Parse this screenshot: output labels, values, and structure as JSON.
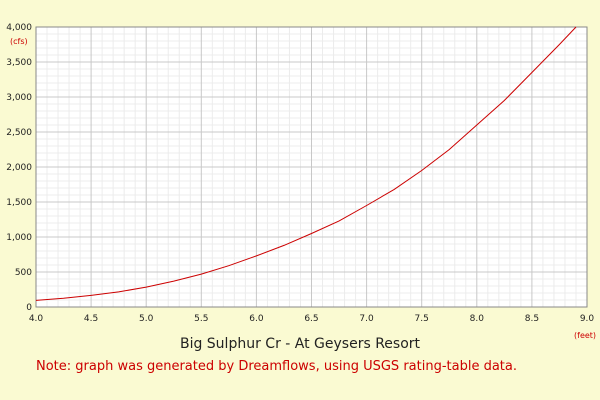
{
  "chart_data": {
    "type": "line",
    "title": "Big Sulphur Cr - At Geysers Resort",
    "note": "Note: graph was generated by Dreamflows, using USGS rating-table data.",
    "x_unit": "(feet)",
    "y_unit": "(cfs)",
    "xlim": [
      4.0,
      9.0
    ],
    "ylim": [
      0,
      4000
    ],
    "x_ticks": [
      4.0,
      4.5,
      5.0,
      5.5,
      6.0,
      6.5,
      7.0,
      7.5,
      8.0,
      8.5,
      9.0
    ],
    "x_tick_labels": [
      "4.0",
      "4.5",
      "5.0",
      "5.5",
      "6.0",
      "6.5",
      "7.0",
      "7.5",
      "8.0",
      "8.5",
      "9.0"
    ],
    "y_ticks": [
      0,
      500,
      1000,
      1500,
      2000,
      2500,
      3000,
      3500,
      4000
    ],
    "y_tick_labels": [
      "0",
      "500",
      "1,000",
      "1,500",
      "2,000",
      "2,500",
      "3,000",
      "3,500",
      "4,000"
    ],
    "grid": true,
    "line_color": "#cc0000",
    "series": [
      {
        "x": [
          4.0,
          4.25,
          4.5,
          4.75,
          5.0,
          5.25,
          5.5,
          5.75,
          6.0,
          6.25,
          6.5,
          6.75,
          7.0,
          7.25,
          7.5,
          7.75,
          8.0,
          8.25,
          8.5,
          8.75,
          8.9
        ],
        "y": [
          95,
          125,
          165,
          215,
          285,
          370,
          470,
          590,
          730,
          880,
          1050,
          1230,
          1450,
          1680,
          1950,
          2250,
          2600,
          2950,
          3350,
          3750,
          4000
        ]
      }
    ]
  }
}
